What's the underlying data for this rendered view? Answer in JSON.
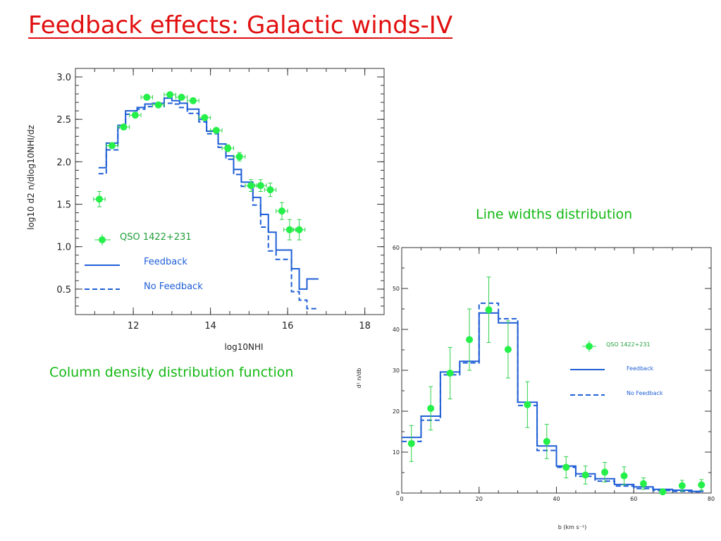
{
  "slide": {
    "title": "Feedback effects: Galactic winds-IV",
    "caption_left": "Column density distribution function",
    "caption_right": "Line widths distribution"
  },
  "colors": {
    "title": "#e10f0f",
    "caption": "#14b814",
    "model": "#1f5fd6",
    "data": "#25f04a",
    "error": "#2fd14a"
  },
  "chart_data": [
    {
      "type": "line",
      "title": "",
      "xlabel": "log10NHI",
      "ylabel": "log10 d2 n/dlog10NHI/dz",
      "xlim": [
        10.5,
        18.5
      ],
      "ylim": [
        0.2,
        3.1
      ],
      "xticks": [
        "12",
        "14",
        "16",
        "18"
      ],
      "yticks": [
        "0.5",
        "1.0",
        "1.5",
        "2.0",
        "2.5",
        "3.0"
      ],
      "grid": false,
      "legend": {
        "position": "bottom-left",
        "entries": [
          "QSO 1422+231",
          "Feedback",
          "No Feedback"
        ]
      },
      "step_edges": [
        11.1,
        11.3,
        11.6,
        11.8,
        12.1,
        12.3,
        12.5,
        12.8,
        13.0,
        13.2,
        13.4,
        13.7,
        13.9,
        14.2,
        14.4,
        14.6,
        14.8,
        15.1,
        15.3,
        15.5,
        15.7,
        16.1,
        16.3,
        16.5,
        16.8
      ],
      "series": [
        {
          "name": "Feedback",
          "style": "solid",
          "values": [
            1.93,
            2.22,
            2.43,
            2.6,
            2.64,
            2.68,
            2.69,
            2.75,
            2.72,
            2.69,
            2.62,
            2.5,
            2.36,
            2.21,
            2.07,
            1.91,
            1.76,
            1.58,
            1.38,
            1.17,
            0.96,
            0.74,
            0.5,
            0.62
          ]
        },
        {
          "name": "No Feedback",
          "style": "dashed",
          "values": [
            1.86,
            2.14,
            2.4,
            2.56,
            2.62,
            2.65,
            2.65,
            2.69,
            2.68,
            2.64,
            2.57,
            2.47,
            2.33,
            2.17,
            2.03,
            1.85,
            1.71,
            1.49,
            1.23,
            0.95,
            0.85,
            0.47,
            0.37,
            0.27
          ]
        },
        {
          "name": "QSO 1422+231",
          "style": "points",
          "x": [
            11.12,
            11.45,
            11.75,
            12.05,
            12.35,
            12.65,
            12.95,
            13.25,
            13.55,
            13.85,
            14.15,
            14.45,
            14.75,
            15.05,
            15.3,
            15.55,
            15.85,
            16.05,
            16.3
          ],
          "y": [
            1.56,
            2.19,
            2.41,
            2.55,
            2.76,
            2.67,
            2.79,
            2.76,
            2.72,
            2.52,
            2.37,
            2.16,
            2.06,
            1.72,
            1.72,
            1.67,
            1.42,
            1.2,
            1.2
          ],
          "xerr": 0.15,
          "yerr": [
            0.09,
            0.03,
            0.03,
            0.03,
            0.03,
            0.03,
            0.03,
            0.03,
            0.03,
            0.03,
            0.03,
            0.04,
            0.05,
            0.07,
            0.07,
            0.08,
            0.1,
            0.12,
            0.12
          ]
        }
      ]
    },
    {
      "type": "line",
      "title": "",
      "xlabel": "b (km s⁻¹)",
      "ylabel": "d² n/db",
      "xlim": [
        0,
        80
      ],
      "ylim": [
        0,
        60
      ],
      "xticks": [
        "0",
        "20",
        "40",
        "60",
        "80"
      ],
      "yticks": [
        "0",
        "10",
        "20",
        "30",
        "40",
        "50",
        "60"
      ],
      "grid": false,
      "legend": {
        "position": "right",
        "entries": [
          "QSO 1422+231",
          "Feedback",
          "No Feedback"
        ]
      },
      "step_edges": [
        0,
        5,
        10,
        15,
        20,
        25,
        30,
        35,
        40,
        45,
        50,
        55,
        60,
        65,
        70,
        75,
        78
      ],
      "series": [
        {
          "name": "Feedback",
          "style": "solid",
          "values": [
            13.6,
            18.8,
            29.6,
            32.2,
            44.0,
            41.6,
            22.2,
            11.5,
            6.6,
            4.7,
            3.5,
            2.1,
            1.5,
            0.9,
            0.7,
            0.4
          ]
        },
        {
          "name": "No Feedback",
          "style": "dashed",
          "values": [
            12.6,
            17.8,
            28.9,
            31.8,
            46.4,
            42.6,
            21.4,
            10.4,
            6.3,
            4.1,
            2.9,
            1.7,
            1.1,
            0.6,
            0.4,
            0.3
          ]
        },
        {
          "name": "QSO 1422+231",
          "style": "points",
          "x": [
            2.5,
            7.5,
            12.5,
            17.5,
            22.5,
            27.5,
            32.5,
            37.5,
            42.5,
            47.5,
            52.5,
            57.5,
            62.5,
            67.5,
            72.5,
            77.5
          ],
          "y": [
            12.1,
            20.7,
            29.3,
            37.5,
            44.8,
            35.1,
            21.6,
            12.6,
            6.3,
            4.4,
            5.1,
            4.2,
            2.3,
            0.3,
            1.8,
            2.0
          ],
          "yerr": [
            4.4,
            5.3,
            6.3,
            7.5,
            8.0,
            7.0,
            5.6,
            4.2,
            2.6,
            2.2,
            2.4,
            2.2,
            1.4,
            0.5,
            1.3,
            1.3
          ]
        }
      ]
    }
  ]
}
